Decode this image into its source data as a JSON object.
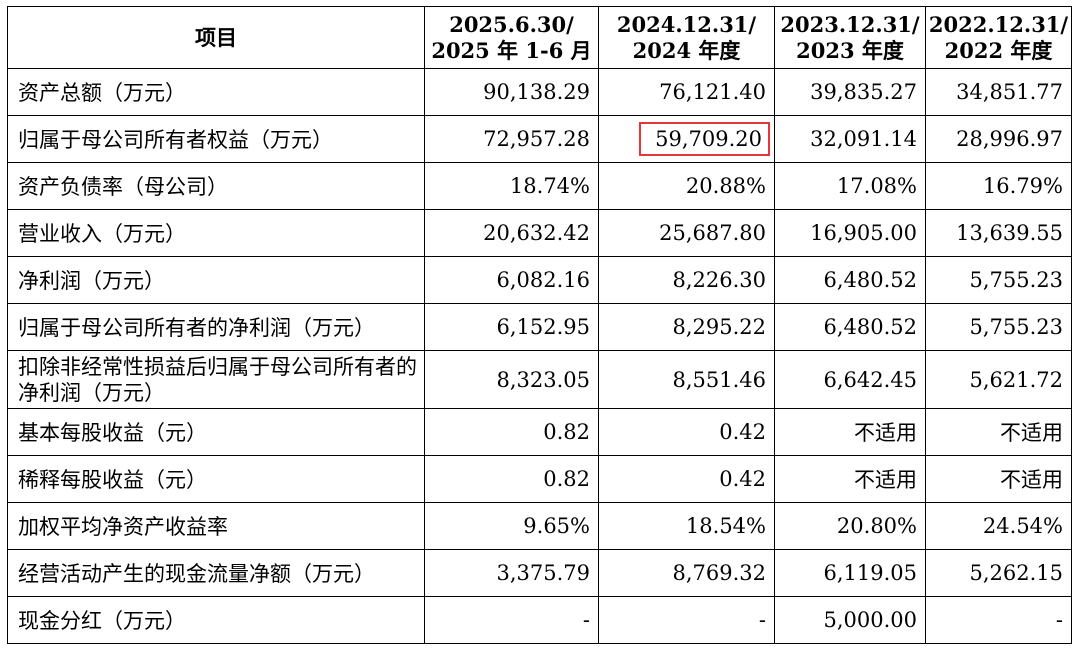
{
  "header": {
    "item": "项目",
    "col1": [
      "2025.6.30/",
      "2025 年 1-6 月"
    ],
    "col2": [
      "2024.12.31/",
      "2024 年度"
    ],
    "col3": [
      "2023.12.31/",
      "2023 年度"
    ],
    "col4": [
      "2022.12.31/",
      "2022 年度"
    ]
  },
  "rows": [
    {
      "label": "资产总额（万元）",
      "values": [
        "90,138.29",
        "76,121.40",
        "39,835.27",
        "34,851.77"
      ]
    },
    {
      "label": "归属于母公司所有者权益（万元）",
      "values": [
        "72,957.28",
        "59,709.20",
        "32,091.14",
        "28,996.97"
      ]
    },
    {
      "label": "资产负债率（母公司）",
      "values": [
        "18.74%",
        "20.88%",
        "17.08%",
        "16.79%"
      ]
    },
    {
      "label": "营业收入（万元）",
      "values": [
        "20,632.42",
        "25,687.80",
        "16,905.00",
        "13,639.55"
      ]
    },
    {
      "label": "净利润（万元）",
      "values": [
        "6,082.16",
        "8,226.30",
        "6,480.52",
        "5,755.23"
      ]
    },
    {
      "label": "归属于母公司所有者的净利润（万元）",
      "values": [
        "6,152.95",
        "8,295.22",
        "6,480.52",
        "5,755.23"
      ]
    },
    {
      "label": "扣除非经常性损益后归属于母公司所有者的净利润（万元）",
      "values": [
        "8,323.05",
        "8,551.46",
        "6,642.45",
        "5,621.72"
      ]
    },
    {
      "label": "基本每股收益（元）",
      "values": [
        "0.82",
        "0.42",
        "不适用",
        "不适用"
      ]
    },
    {
      "label": "稀释每股收益（元）",
      "values": [
        "0.82",
        "0.42",
        "不适用",
        "不适用"
      ]
    },
    {
      "label": "加权平均净资产收益率",
      "values": [
        "9.65%",
        "18.54%",
        "20.80%",
        "24.54%"
      ]
    },
    {
      "label": "经营活动产生的现金流量净额（万元）",
      "values": [
        "3,375.79",
        "8,769.32",
        "6,119.05",
        "5,262.15"
      ]
    },
    {
      "label": "现金分红（万元）",
      "values": [
        "-",
        "-",
        "5,000.00",
        "-"
      ]
    }
  ],
  "highlight_color": "#e8353a"
}
